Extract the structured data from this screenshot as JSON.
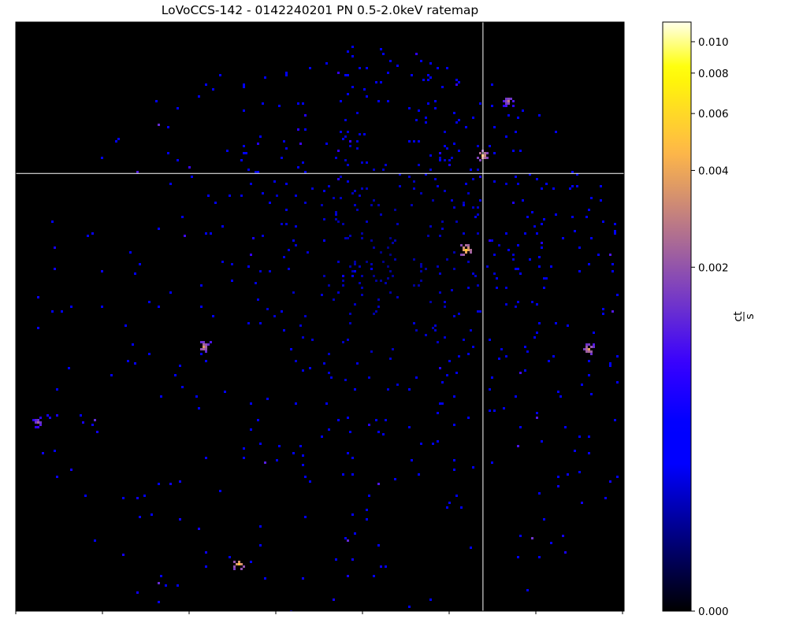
{
  "chart_data": {
    "type": "heatmap",
    "title": "LoVoCCS-142 - 0142240201 PN 0.5-2.0keV ratemap",
    "colorbar": {
      "label_numerator": "ct",
      "label_denominator": "s",
      "scale": "asinh",
      "range": [
        0.0,
        0.0115
      ],
      "ticks": [
        {
          "value": 0.0,
          "label": "0.000"
        },
        {
          "value": 0.002,
          "label": "0.002"
        },
        {
          "value": 0.004,
          "label": "0.004"
        },
        {
          "value": 0.006,
          "label": "0.006"
        },
        {
          "value": 0.008,
          "label": "0.008"
        },
        {
          "value": 0.01,
          "label": "0.010"
        }
      ],
      "colormap": "gnuplot2"
    },
    "crosshair": {
      "x_fraction": 0.768,
      "y_fraction": 0.257
    },
    "x_tick_marks": 8,
    "field_of_view": "circular",
    "point_sources": [
      {
        "x": 0.739,
        "y": 0.384,
        "brightness": 0.0045
      },
      {
        "x": 0.764,
        "y": 0.224,
        "brightness": 0.0035
      },
      {
        "x": 0.308,
        "y": 0.548,
        "brightness": 0.0028
      },
      {
        "x": 0.365,
        "y": 0.918,
        "brightness": 0.004
      },
      {
        "x": 0.939,
        "y": 0.552,
        "brightness": 0.003
      },
      {
        "x": 0.807,
        "y": 0.131,
        "brightness": 0.0022
      },
      {
        "x": 0.036,
        "y": 0.676,
        "brightness": 0.0018
      }
    ]
  }
}
